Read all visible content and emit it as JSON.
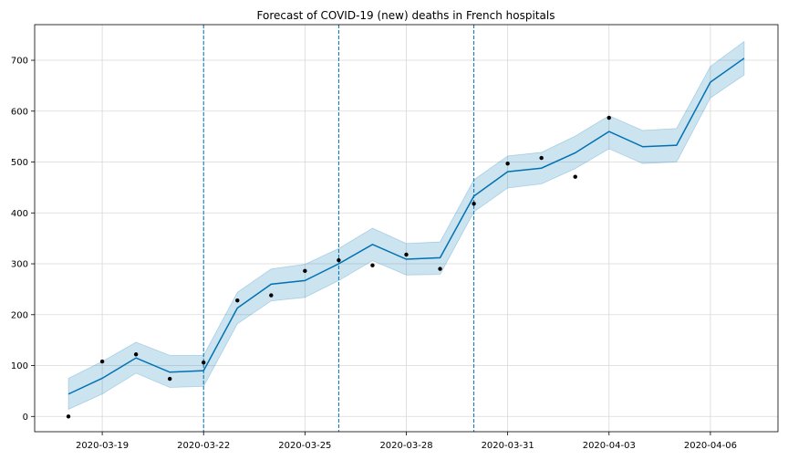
{
  "chart_data": {
    "type": "line",
    "title": "Forecast of COVID-19 (new) deaths in French hospitals",
    "xlabel": "",
    "ylabel": "",
    "x_start": "2020-03-18",
    "xlim": [
      "2020-03-17",
      "2020-04-08"
    ],
    "ylim": [
      -30,
      770
    ],
    "yticks": [
      0,
      100,
      200,
      300,
      400,
      500,
      600,
      700
    ],
    "xticks": [
      "2020-03-19",
      "2020-03-22",
      "2020-03-25",
      "2020-03-28",
      "2020-03-31",
      "2020-04-03",
      "2020-04-06"
    ],
    "grid": true,
    "actual": [
      0,
      108,
      122,
      74,
      106,
      228,
      238,
      286,
      307,
      297,
      318,
      290,
      418,
      497,
      508,
      471,
      587
    ],
    "forecast": [
      44,
      75,
      115,
      87,
      90,
      213,
      260,
      267,
      300,
      338,
      309,
      312,
      433,
      481,
      488,
      518,
      560,
      530,
      533,
      657,
      704
    ],
    "lower": [
      14,
      44,
      85,
      57,
      59,
      182,
      227,
      234,
      267,
      306,
      278,
      279,
      402,
      449,
      457,
      487,
      526,
      497,
      500,
      626,
      671
    ],
    "upper": [
      75,
      108,
      146,
      120,
      120,
      244,
      290,
      299,
      330,
      370,
      340,
      343,
      465,
      512,
      519,
      551,
      591,
      562,
      566,
      688,
      737
    ],
    "changepoints": [
      "2020-03-22",
      "2020-03-26",
      "2020-03-30"
    ],
    "colors": {
      "forecast_line": "#0072B2",
      "interval_fill": "#0072B2",
      "actual_points": "#000000",
      "grid": "#d9d9d9",
      "changepoint": "#0072B2"
    }
  }
}
